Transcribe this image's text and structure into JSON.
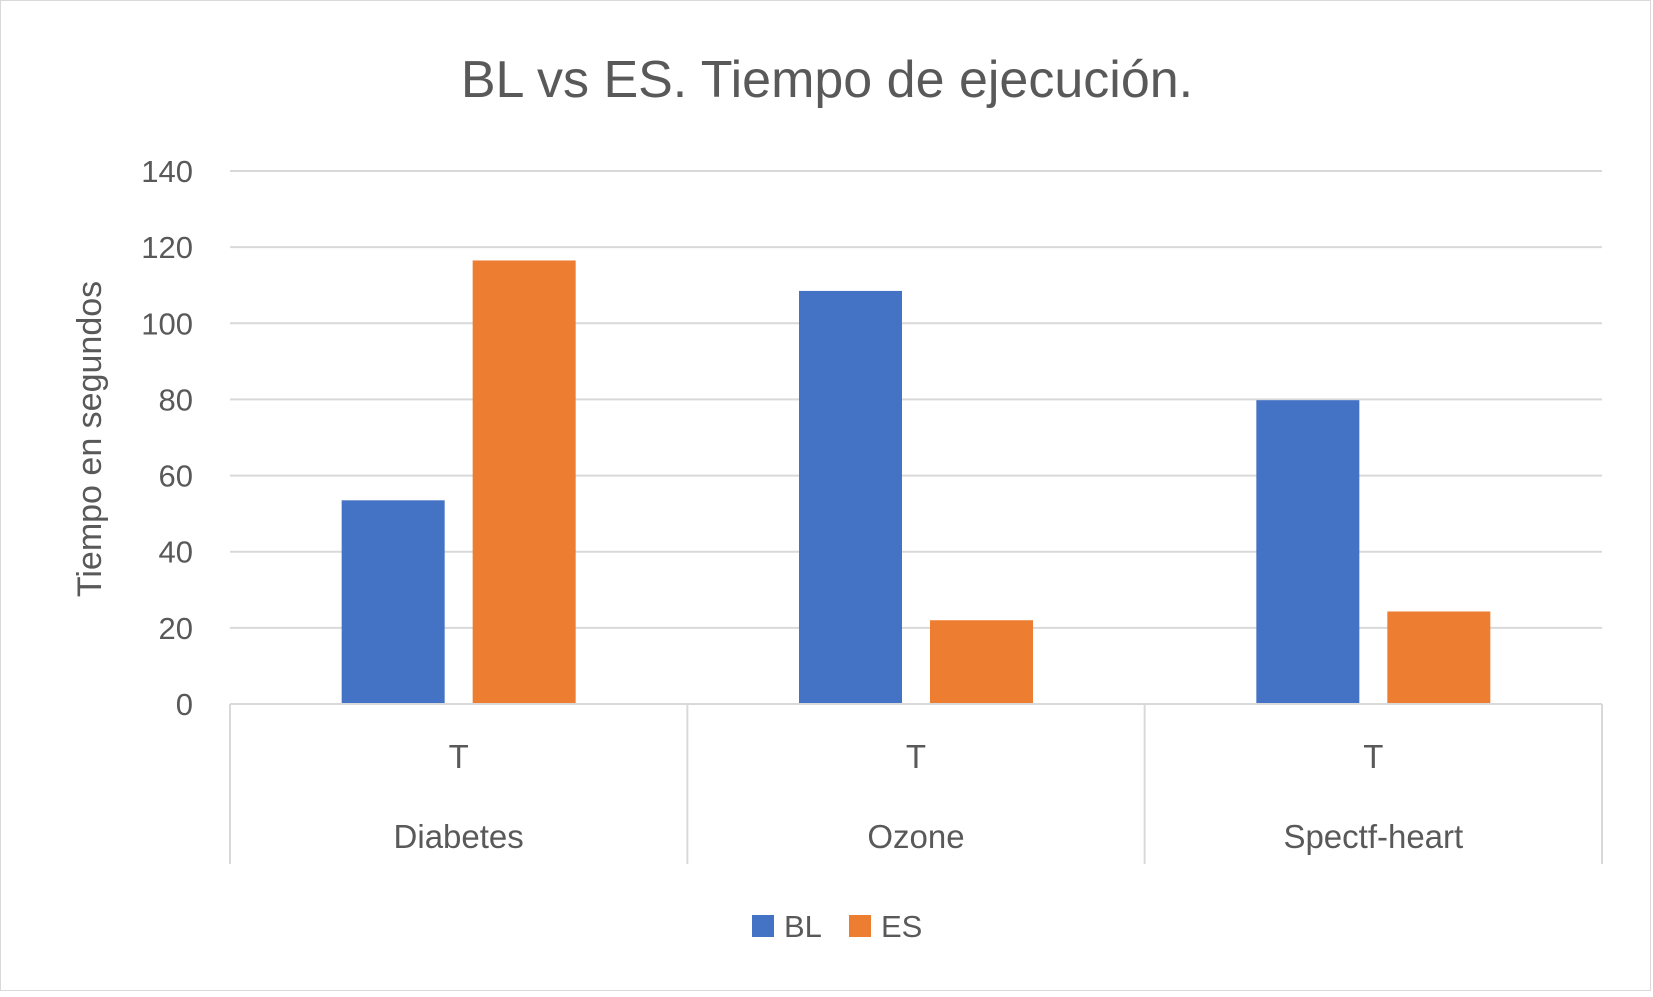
{
  "chart_data": {
    "type": "bar",
    "title": "BL vs ES. Tiempo de ejecución.",
    "ylabel": "Tiempo en segundos",
    "xlabel": "",
    "ylim": [
      0,
      140
    ],
    "yticks": [
      0,
      20,
      40,
      60,
      80,
      100,
      120,
      140
    ],
    "grid": true,
    "legend_position": "bottom",
    "categories": [
      {
        "group": "Diabetes",
        "label": "T"
      },
      {
        "group": "Ozone",
        "label": "T"
      },
      {
        "group": "Spectf-heart",
        "label": "T"
      }
    ],
    "series": [
      {
        "name": "BL",
        "color": "#4472c4",
        "values": [
          53.5,
          108.5,
          79.8
        ]
      },
      {
        "name": "ES",
        "color": "#ed7d31",
        "values": [
          116.5,
          22,
          24.3
        ]
      }
    ]
  }
}
